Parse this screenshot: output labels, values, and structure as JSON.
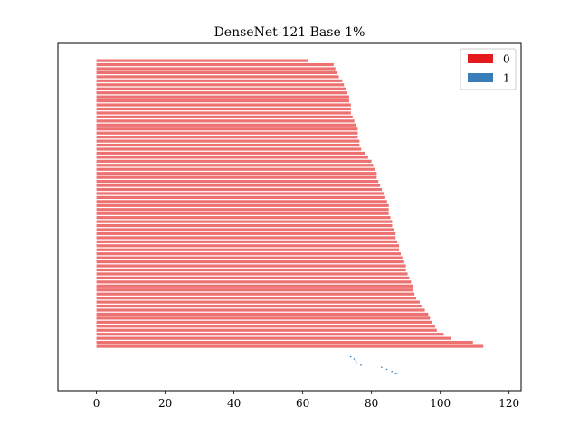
{
  "chart_data": {
    "type": "bar",
    "orientation": "horizontal",
    "title": "DenseNet-121 Base 1%",
    "xlabel": "",
    "ylabel": "",
    "xlim": [
      -11.2,
      123.5
    ],
    "x_ticks": [
      0,
      20,
      40,
      60,
      80,
      100,
      120
    ],
    "legend": {
      "placement": "top-right",
      "entries": [
        {
          "label": "0",
          "color": "#e41a1c"
        },
        {
          "label": "1",
          "color": "#377eb8"
        }
      ]
    },
    "series": [
      {
        "name": "0",
        "color": "#e41a1c",
        "values": [
          61.5,
          69,
          69.5,
          70,
          70.5,
          71.5,
          72,
          72.5,
          73,
          73.5,
          73.5,
          74,
          74,
          74,
          74.5,
          75,
          75.5,
          76,
          76,
          76,
          76.5,
          76.5,
          77,
          78,
          79,
          80,
          80.5,
          81,
          81.5,
          81.5,
          82,
          82.5,
          83,
          83.5,
          84,
          84.5,
          85,
          85,
          85,
          85.5,
          86,
          86,
          86.5,
          87,
          87,
          87.5,
          88,
          88,
          88.5,
          89,
          89.5,
          90,
          90,
          90.5,
          91,
          91.5,
          92,
          92,
          92.5,
          93,
          94,
          94.5,
          95.5,
          96.5,
          97,
          97.5,
          98.5,
          99,
          101,
          103,
          109.5,
          112.5
        ]
      },
      {
        "name": "1",
        "color": "#377eb8",
        "values": [
          74,
          75,
          75.5,
          76,
          77,
          83,
          84.5,
          86,
          87
        ]
      }
    ]
  }
}
